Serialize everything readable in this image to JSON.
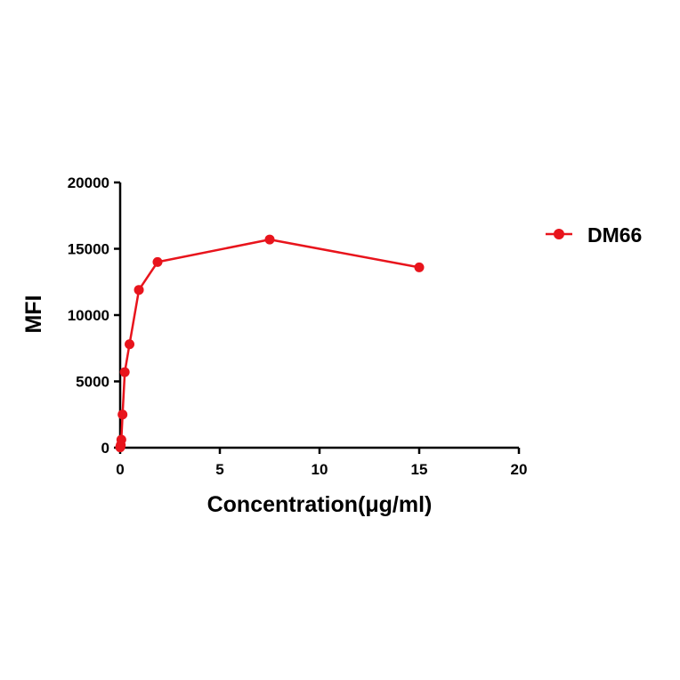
{
  "chart_data": {
    "type": "line",
    "title": "",
    "xlabel": "Concentration(μg/ml)",
    "ylabel": "MFI",
    "xlim": [
      0,
      20
    ],
    "ylim": [
      0,
      20000
    ],
    "xticks": [
      0,
      5,
      10,
      15,
      20
    ],
    "xtick_labels": [
      "0",
      "5",
      "10",
      "15",
      "20"
    ],
    "yticks": [
      0,
      5000,
      10000,
      15000,
      20000
    ],
    "ytick_labels": [
      "0",
      "5000",
      "10000",
      "15000",
      "20000"
    ],
    "grid": false,
    "legend_position": "top-right",
    "series": [
      {
        "name": "DM66",
        "color": "#e8141c",
        "marker": "circle",
        "x": [
          0.0,
          0.015,
          0.03,
          0.06,
          0.12,
          0.23,
          0.47,
          0.94,
          1.875,
          7.5,
          15
        ],
        "y": [
          30,
          80,
          200,
          600,
          2500,
          5700,
          7800,
          11900,
          14000,
          15700,
          13600
        ]
      }
    ]
  }
}
